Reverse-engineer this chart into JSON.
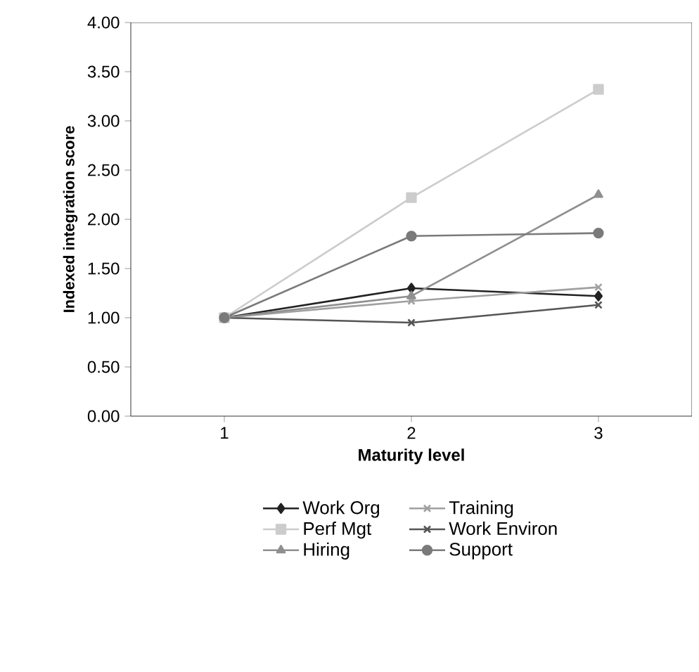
{
  "chart_data": {
    "type": "line",
    "xlabel": "Maturity level",
    "ylabel": "Indexed integration score",
    "x": [
      1,
      2,
      3
    ],
    "xlim": [
      0.5,
      3.5
    ],
    "xticks": [
      1,
      2,
      3
    ],
    "ylim": [
      0,
      4
    ],
    "yticks": [
      {
        "value": 0,
        "label": "0.00"
      },
      {
        "value": 0.5,
        "label": "0.50"
      },
      {
        "value": 1,
        "label": "1.00"
      },
      {
        "value": 1.5,
        "label": "1.50"
      },
      {
        "value": 2,
        "label": "2.00"
      },
      {
        "value": 2.5,
        "label": "2.50"
      },
      {
        "value": 3,
        "label": "3.00"
      },
      {
        "value": 3.5,
        "label": "3.50"
      },
      {
        "value": 4,
        "label": "4.00"
      }
    ],
    "grid": false,
    "legend": "bottom",
    "series": [
      {
        "name": "Work Org",
        "color": "#222222",
        "marker": "diamond",
        "values": [
          1.0,
          1.3,
          1.22
        ]
      },
      {
        "name": "Training",
        "color": "#a0a0a0",
        "marker": "cross",
        "values": [
          1.0,
          1.17,
          1.31
        ]
      },
      {
        "name": "Perf Mgt",
        "color": "#cccccc",
        "marker": "square",
        "values": [
          1.0,
          2.22,
          3.32
        ]
      },
      {
        "name": "Work Environ",
        "color": "#555555",
        "marker": "cross",
        "values": [
          1.0,
          0.95,
          1.13
        ]
      },
      {
        "name": "Hiring",
        "color": "#8f8f8f",
        "marker": "triangle",
        "values": [
          1.0,
          1.22,
          2.25
        ]
      },
      {
        "name": "Support",
        "color": "#7a7a7a",
        "marker": "circle",
        "values": [
          1.0,
          1.83,
          1.86
        ]
      }
    ]
  }
}
